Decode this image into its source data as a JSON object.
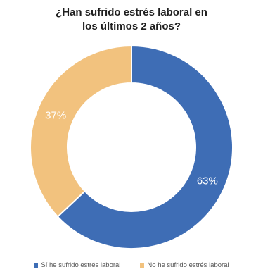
{
  "chart_data": {
    "type": "pie",
    "title_lines": [
      "¿Han sufrido estrés laboral en",
      "los últimos 2 años?"
    ],
    "donut": true,
    "start": "12 o'clock",
    "direction": "clockwise",
    "series": [
      {
        "name": "Sí he sufrido estrés laboral",
        "value": 63,
        "label": "63%",
        "color": "#3e6db5"
      },
      {
        "name": "No he sufrido estrés laboral",
        "value": 37,
        "label": "37%",
        "color": "#f2c27e"
      }
    ],
    "legend_position": "bottom"
  }
}
